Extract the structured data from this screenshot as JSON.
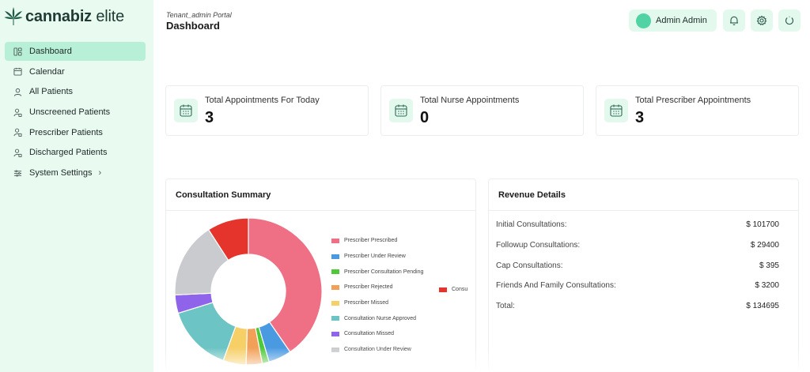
{
  "brand": {
    "name_bold": "cannabiz",
    "name_light": "elite"
  },
  "sidebar": {
    "items": [
      {
        "label": "Dashboard",
        "icon": "dashboard-icon",
        "active": true
      },
      {
        "label": "Calendar",
        "icon": "calendar-icon"
      },
      {
        "label": "All Patients",
        "icon": "user-icon"
      },
      {
        "label": "Unscreened Patients",
        "icon": "user-clipboard-icon"
      },
      {
        "label": "Prescriber Patients",
        "icon": "user-clipboard-icon"
      },
      {
        "label": "Discharged Patients",
        "icon": "user-clipboard-icon"
      },
      {
        "label": "System Settings",
        "icon": "sliders-icon",
        "chevron": "›"
      }
    ]
  },
  "header": {
    "portal": "Tenant_admin Portal",
    "title": "Dashboard",
    "user_name": "Admin Admin"
  },
  "stats": [
    {
      "label": "Total Appointments For Today",
      "value": "3"
    },
    {
      "label": "Total Nurse Appointments",
      "value": "0"
    },
    {
      "label": "Total Prescriber Appointments",
      "value": "3"
    }
  ],
  "consultation": {
    "title": "Consultation Summary",
    "overflow_legend_label": "Consu"
  },
  "chart_data": {
    "type": "pie",
    "title": "Consultation Summary",
    "style": "doughnut",
    "categories": [
      "Prescriber Prescribed",
      "Prescriber Under Review",
      "Prescriber Consultation Pending",
      "Prescriber Rejected",
      "Prescriber Missed",
      "Consultation Nurse Approved",
      "Consultation Missed",
      "Consultation Under Review",
      "Consultation"
    ],
    "values": [
      40,
      5,
      1.5,
      3.5,
      5,
      14.5,
      4,
      16.5,
      9
    ],
    "colors": [
      "#ef6f85",
      "#4a9ae2",
      "#4fc938",
      "#f2a057",
      "#f6cf67",
      "#6cc4c4",
      "#8f63ea",
      "#c9cbce",
      "#e4342b"
    ],
    "legend_position": "right"
  },
  "revenue": {
    "title": "Revenue Details",
    "rows": [
      {
        "label": "Initial Consultations:",
        "value": "$ 101700"
      },
      {
        "label": "Followup Consultations:",
        "value": "$ 29400"
      },
      {
        "label": "Cap Consultations:",
        "value": "$ 395"
      },
      {
        "label": "Friends And Family Consultations:",
        "value": "$ 3200"
      },
      {
        "label": "Total:",
        "value": "$ 134695"
      }
    ]
  }
}
